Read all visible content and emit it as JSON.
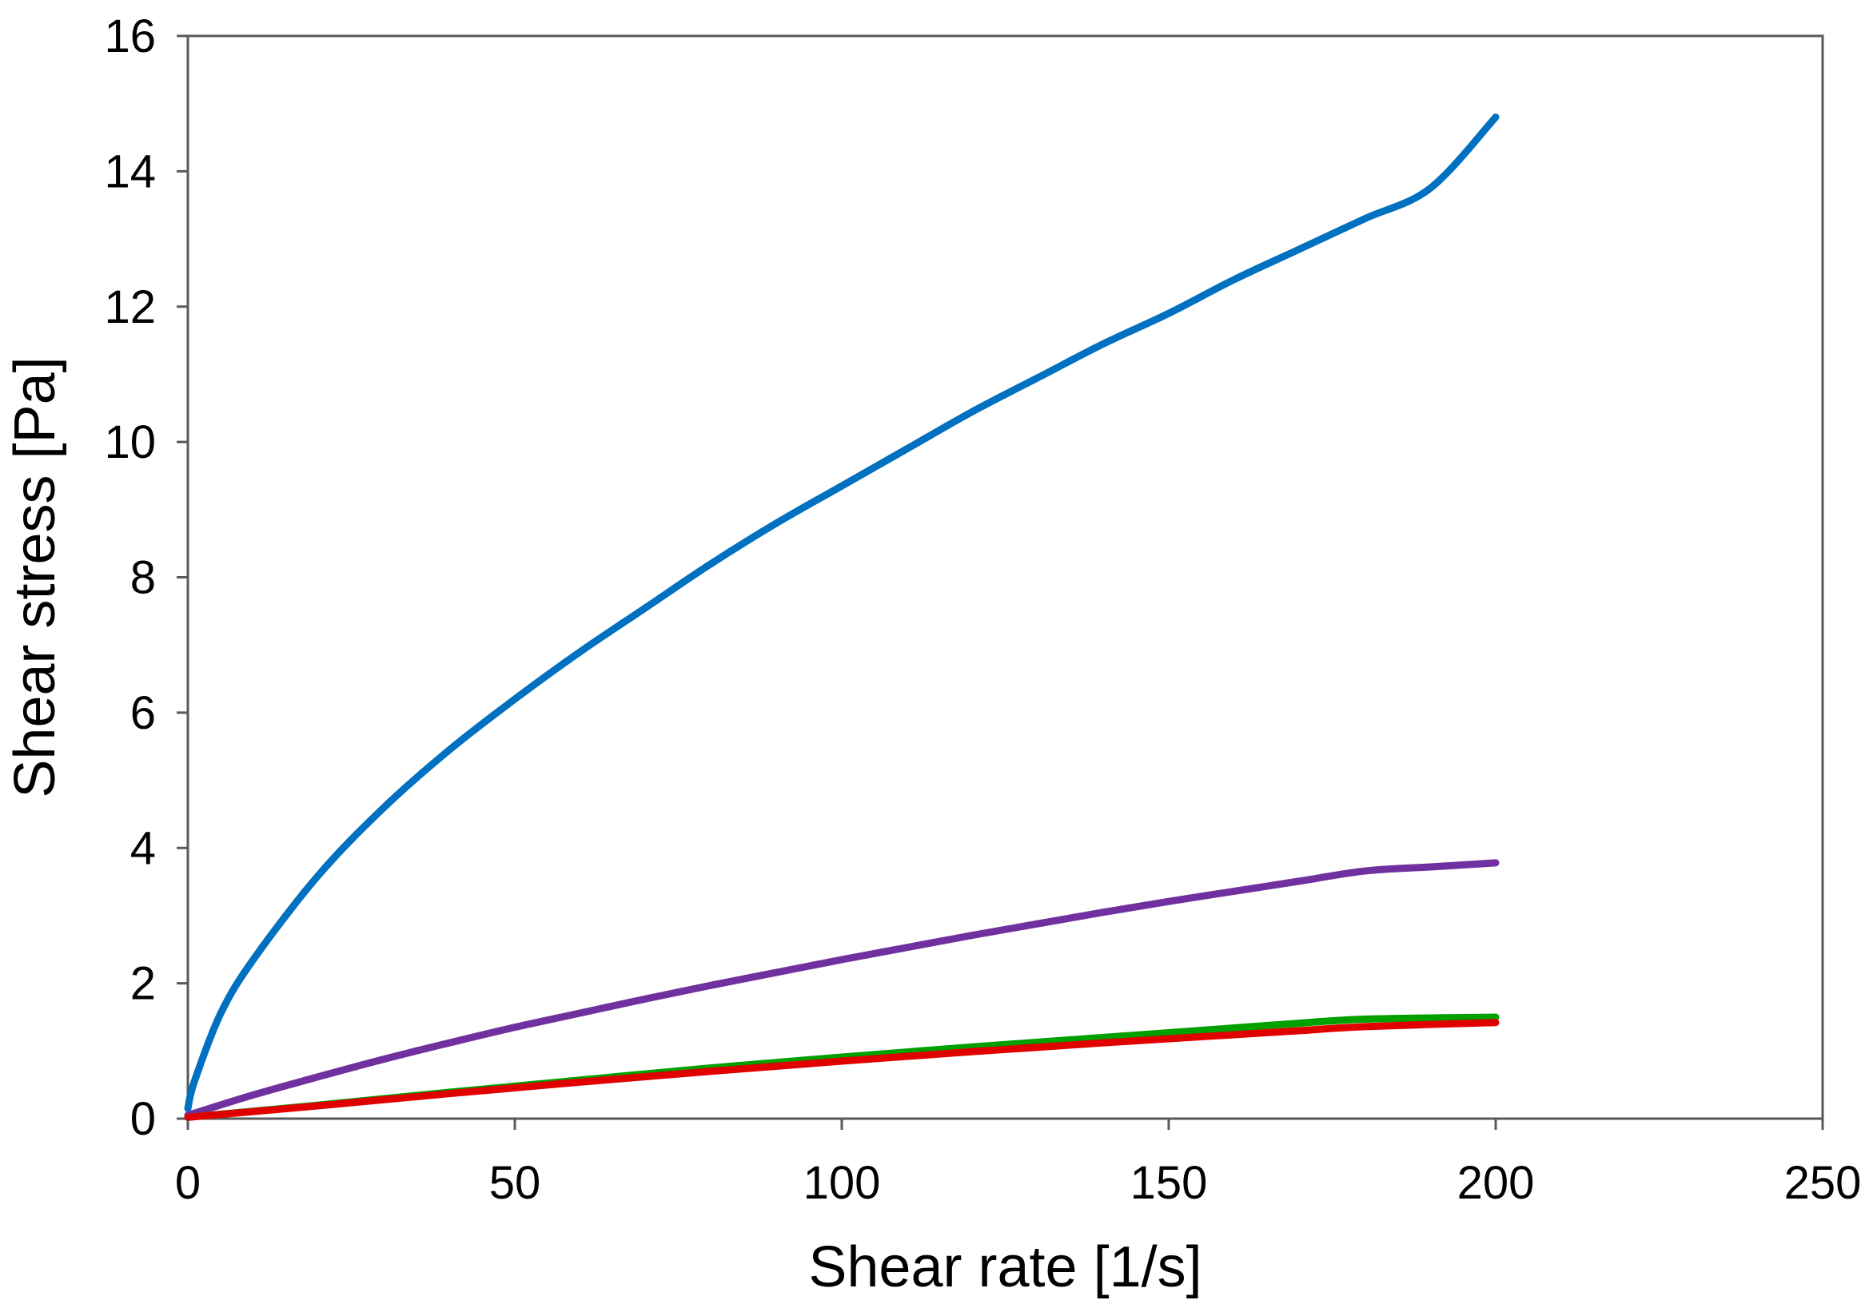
{
  "chart_data": {
    "type": "line",
    "title": "",
    "xlabel": "Shear rate [1/s]",
    "ylabel": "Shear stress [Pa]",
    "xlim": [
      0,
      250
    ],
    "ylim": [
      0,
      16
    ],
    "xticks": [
      0,
      50,
      100,
      150,
      200,
      250
    ],
    "yticks": [
      0,
      2,
      4,
      6,
      8,
      10,
      12,
      14,
      16
    ],
    "x_tick_labels": [
      "0",
      "50",
      "100",
      "150",
      "200",
      "250"
    ],
    "y_tick_labels": [
      "0",
      "2",
      "4",
      "6",
      "8",
      "10",
      "12",
      "14",
      "16"
    ],
    "grid": false,
    "legend": "none",
    "series": [
      {
        "name": "blue",
        "color": "#0070C0",
        "x": [
          0,
          1,
          5,
          10,
          20,
          30,
          40,
          50,
          60,
          70,
          80,
          90,
          100,
          110,
          120,
          130,
          140,
          150,
          160,
          170,
          180,
          190,
          200
        ],
        "y": [
          0.15,
          0.55,
          1.55,
          2.35,
          3.6,
          4.6,
          5.45,
          6.2,
          6.9,
          7.55,
          8.2,
          8.8,
          9.35,
          9.9,
          10.45,
          10.95,
          11.45,
          11.9,
          12.4,
          12.85,
          13.3,
          13.75,
          14.8
        ]
      },
      {
        "name": "purple",
        "color": "#7030A0",
        "x": [
          0,
          10,
          20,
          30,
          40,
          50,
          60,
          70,
          80,
          90,
          100,
          110,
          120,
          130,
          140,
          150,
          160,
          170,
          180,
          190,
          200
        ],
        "y": [
          0.05,
          0.35,
          0.62,
          0.88,
          1.12,
          1.35,
          1.56,
          1.77,
          1.97,
          2.16,
          2.35,
          2.53,
          2.71,
          2.88,
          3.05,
          3.21,
          3.36,
          3.51,
          3.66,
          3.72,
          3.78
        ]
      },
      {
        "name": "green",
        "color": "#00A000",
        "x": [
          0,
          20,
          40,
          60,
          80,
          100,
          120,
          140,
          160,
          170,
          180,
          200
        ],
        "y": [
          0.02,
          0.2,
          0.39,
          0.57,
          0.75,
          0.91,
          1.06,
          1.2,
          1.34,
          1.41,
          1.47,
          1.5
        ]
      },
      {
        "name": "red",
        "color": "#E00000",
        "x": [
          0,
          20,
          40,
          60,
          80,
          100,
          120,
          140,
          160,
          170,
          180,
          200
        ],
        "y": [
          0.02,
          0.19,
          0.37,
          0.54,
          0.7,
          0.85,
          0.99,
          1.12,
          1.24,
          1.3,
          1.36,
          1.42
        ]
      }
    ]
  }
}
